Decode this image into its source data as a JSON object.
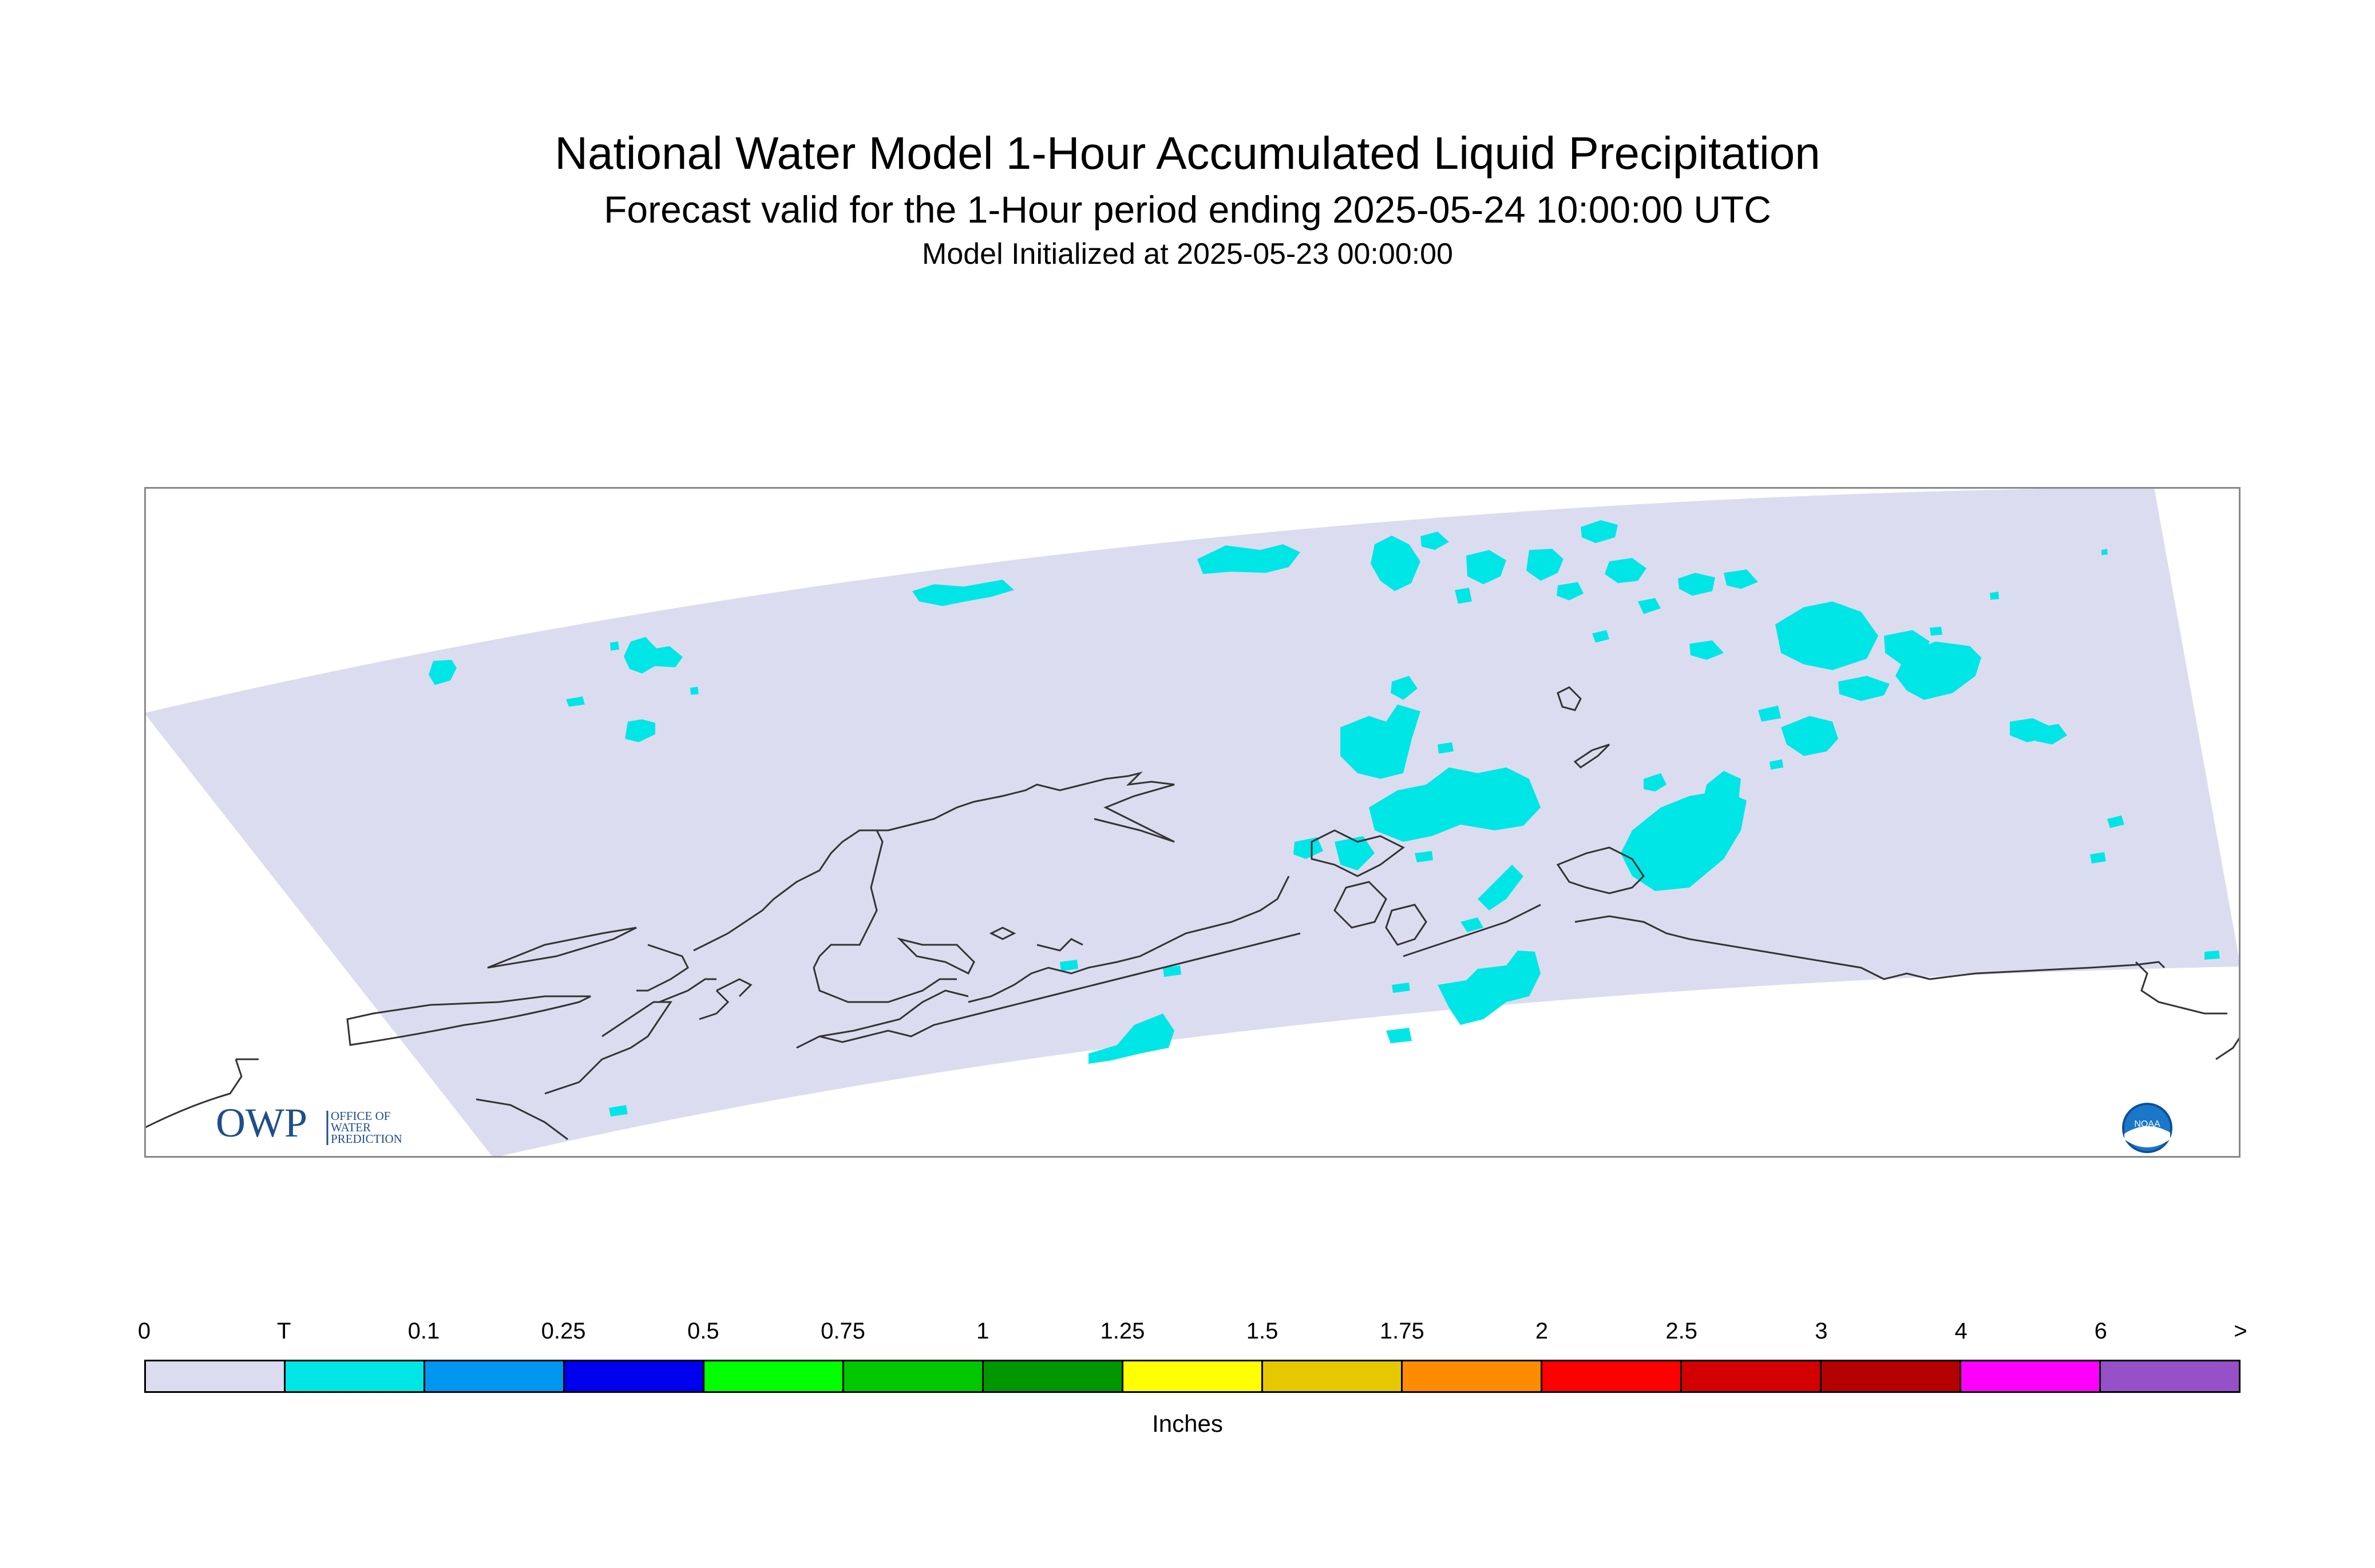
{
  "title": "National Water Model 1-Hour Accumulated Liquid Precipitation",
  "subtitle": "Forecast valid for the 1-Hour period ending 2025-05-24 10:00:00 UTC",
  "init_line": "Model Initialized at 2025-05-23 00:00:00",
  "legend": {
    "units": "Inches",
    "ticks": [
      "0",
      "T",
      "0.1",
      "0.25",
      "0.5",
      "0.75",
      "1",
      "1.25",
      "1.5",
      "1.75",
      "2",
      "2.5",
      "3",
      "4",
      "6",
      ">"
    ],
    "colors": [
      "#dcdcf0",
      "#00e6e6",
      "#0096f0",
      "#0000f0",
      "#00ff00",
      "#00c800",
      "#009600",
      "#ffff00",
      "#e6c800",
      "#ff8c00",
      "#ff0000",
      "#d20000",
      "#b40000",
      "#ff00ff",
      "#9650c8"
    ]
  },
  "map": {
    "domain_fill_color": "#dcdcf0",
    "precip_color": "#00e6e6",
    "coastline_color": "#333333"
  },
  "logos": {
    "owp_letters": "OWP",
    "owp_line1": "OFFICE OF",
    "owp_line2": "WATER",
    "owp_line3": "PREDICTION",
    "noaa_text": "NOAA"
  }
}
